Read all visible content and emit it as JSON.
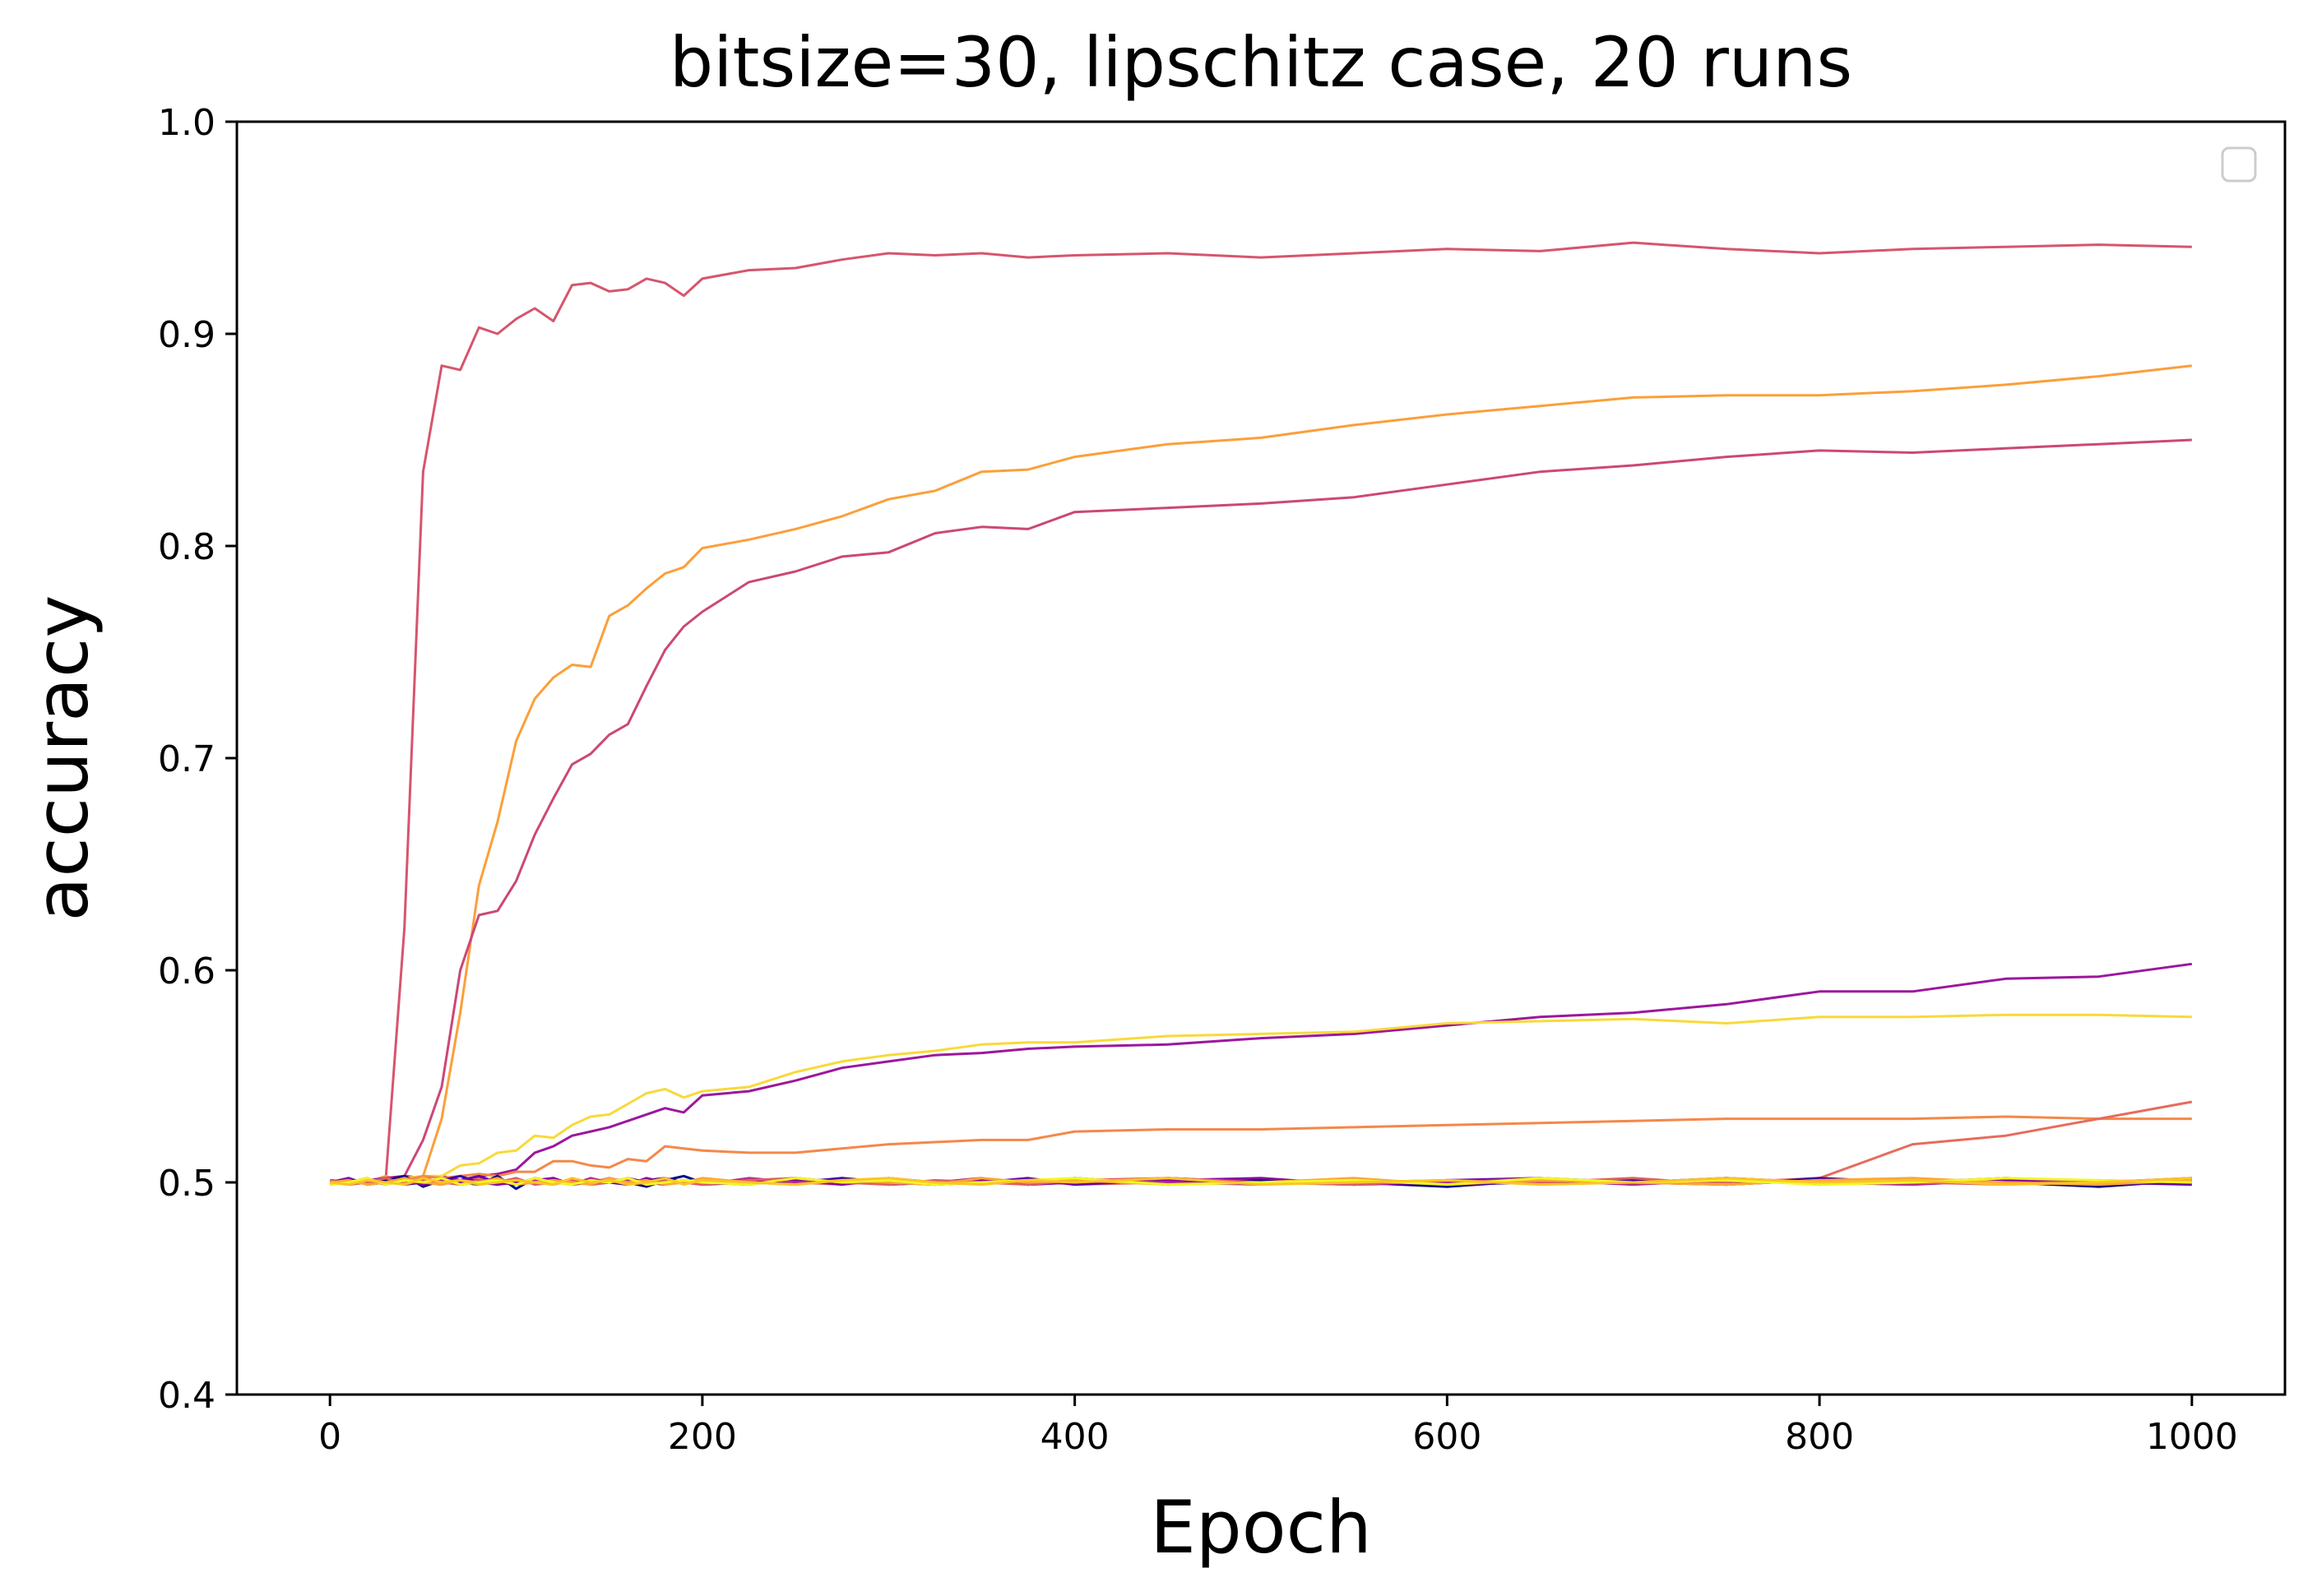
{
  "chart_data": {
    "type": "line",
    "title": "bitsize=30, lipschitz case, 20 runs",
    "xlabel": "Epoch",
    "ylabel": "accuracy",
    "xlim": [
      -50,
      1050
    ],
    "ylim": [
      0.4,
      1.0
    ],
    "xticks": [
      0,
      200,
      400,
      600,
      800,
      1000
    ],
    "yticks": [
      0.4,
      0.5,
      0.6,
      0.7,
      0.8,
      0.9,
      1.0
    ],
    "xtick_labels": [
      "0",
      "200",
      "400",
      "600",
      "800",
      "1000"
    ],
    "ytick_labels": [
      "0.4",
      "0.5",
      "0.6",
      "0.7",
      "0.8",
      "0.9",
      "1.0"
    ],
    "grid": false,
    "legend": {
      "placement": "top-right",
      "entries": []
    },
    "x": [
      0,
      10,
      20,
      30,
      40,
      50,
      60,
      70,
      80,
      90,
      100,
      110,
      120,
      130,
      140,
      150,
      160,
      170,
      180,
      190,
      200,
      225,
      250,
      275,
      300,
      325,
      350,
      375,
      400,
      450,
      500,
      550,
      600,
      650,
      700,
      750,
      800,
      850,
      900,
      950,
      1000
    ],
    "series": [
      {
        "color": "#d6556d",
        "values": [
          0.5,
          0.501,
          0.5,
          0.502,
          0.62,
          0.835,
          0.885,
          0.883,
          0.903,
          0.9,
          0.907,
          0.912,
          0.906,
          0.923,
          0.924,
          0.92,
          0.921,
          0.926,
          0.924,
          0.918,
          0.926,
          0.93,
          0.931,
          0.935,
          0.938,
          0.937,
          0.938,
          0.936,
          0.937,
          0.938,
          0.936,
          0.938,
          0.94,
          0.939,
          0.943,
          0.94,
          0.938,
          0.94,
          0.941,
          0.942,
          0.941
        ]
      },
      {
        "color": "#fb9f3a",
        "values": [
          0.5,
          0.501,
          0.5,
          0.503,
          0.5,
          0.503,
          0.53,
          0.58,
          0.64,
          0.67,
          0.708,
          0.728,
          0.738,
          0.744,
          0.743,
          0.767,
          0.772,
          0.78,
          0.787,
          0.79,
          0.799,
          0.803,
          0.808,
          0.814,
          0.822,
          0.826,
          0.835,
          0.836,
          0.842,
          0.848,
          0.851,
          0.857,
          0.862,
          0.866,
          0.87,
          0.871,
          0.871,
          0.873,
          0.876,
          0.88,
          0.885
        ]
      },
      {
        "color": "#cc4778",
        "values": [
          0.5,
          0.499,
          0.5,
          0.501,
          0.503,
          0.52,
          0.545,
          0.6,
          0.626,
          0.628,
          0.642,
          0.664,
          0.681,
          0.697,
          0.702,
          0.711,
          0.716,
          0.734,
          0.751,
          0.762,
          0.769,
          0.783,
          0.788,
          0.795,
          0.797,
          0.806,
          0.809,
          0.808,
          0.816,
          0.818,
          0.82,
          0.823,
          0.829,
          0.835,
          0.838,
          0.842,
          0.845,
          0.844,
          0.846,
          0.848,
          0.85
        ]
      },
      {
        "color": "#9c179e",
        "values": [
          0.5,
          0.5,
          0.501,
          0.502,
          0.503,
          0.502,
          0.503,
          0.501,
          0.503,
          0.504,
          0.506,
          0.514,
          0.517,
          0.522,
          0.524,
          0.526,
          0.529,
          0.532,
          0.535,
          0.533,
          0.541,
          0.543,
          0.548,
          0.554,
          0.557,
          0.56,
          0.561,
          0.563,
          0.564,
          0.565,
          0.568,
          0.57,
          0.574,
          0.578,
          0.58,
          0.584,
          0.59,
          0.59,
          0.596,
          0.597,
          0.603
        ]
      },
      {
        "color": "#f9d93a",
        "values": [
          0.5,
          0.499,
          0.5,
          0.501,
          0.502,
          0.503,
          0.503,
          0.508,
          0.509,
          0.514,
          0.515,
          0.522,
          0.521,
          0.527,
          0.531,
          0.532,
          0.537,
          0.542,
          0.544,
          0.54,
          0.543,
          0.545,
          0.552,
          0.557,
          0.56,
          0.562,
          0.565,
          0.566,
          0.566,
          0.569,
          0.57,
          0.571,
          0.575,
          0.576,
          0.577,
          0.575,
          0.578,
          0.578,
          0.579,
          0.579,
          0.578
        ]
      },
      {
        "color": "#f48849",
        "values": [
          0.5,
          0.501,
          0.5,
          0.502,
          0.501,
          0.503,
          0.502,
          0.503,
          0.504,
          0.503,
          0.505,
          0.505,
          0.51,
          0.51,
          0.508,
          0.507,
          0.511,
          0.51,
          0.517,
          0.516,
          0.515,
          0.514,
          0.514,
          0.516,
          0.518,
          0.519,
          0.52,
          0.52,
          0.524,
          0.525,
          0.525,
          0.526,
          0.527,
          0.528,
          0.529,
          0.53,
          0.53,
          0.53,
          0.531,
          0.53,
          0.53
        ]
      },
      {
        "color": "#e66c5c",
        "values": [
          0.5,
          0.499,
          0.501,
          0.5,
          0.502,
          0.5,
          0.501,
          0.499,
          0.502,
          0.5,
          0.501,
          0.5,
          0.499,
          0.501,
          0.5,
          0.502,
          0.5,
          0.499,
          0.501,
          0.5,
          0.5,
          0.501,
          0.5,
          0.499,
          0.501,
          0.5,
          0.5,
          0.501,
          0.499,
          0.5,
          0.501,
          0.5,
          0.501,
          0.5,
          0.501,
          0.5,
          0.502,
          0.518,
          0.522,
          0.53,
          0.538
        ]
      },
      {
        "color": "#0d0887",
        "values": [
          0.5,
          0.502,
          0.499,
          0.501,
          0.503,
          0.498,
          0.501,
          0.5,
          0.499,
          0.503,
          0.497,
          0.502,
          0.5,
          0.501,
          0.499,
          0.502,
          0.5,
          0.498,
          0.501,
          0.503,
          0.5,
          0.501,
          0.499,
          0.502,
          0.5,
          0.499,
          0.501,
          0.5,
          0.502,
          0.499,
          0.501,
          0.5,
          0.498,
          0.501,
          0.5,
          0.502,
          0.499,
          0.501,
          0.5,
          0.498,
          0.501
        ]
      },
      {
        "color": "#3e049c",
        "values": [
          0.499,
          0.501,
          0.5,
          0.502,
          0.499,
          0.5,
          0.501,
          0.503,
          0.5,
          0.499,
          0.501,
          0.5,
          0.502,
          0.499,
          0.501,
          0.5,
          0.499,
          0.501,
          0.502,
          0.5,
          0.499,
          0.501,
          0.5,
          0.502,
          0.499,
          0.5,
          0.501,
          0.499,
          0.5,
          0.502,
          0.5,
          0.501,
          0.499,
          0.5,
          0.501,
          0.499,
          0.502,
          0.5,
          0.501,
          0.499,
          0.5
        ]
      },
      {
        "color": "#6300a7",
        "values": [
          0.501,
          0.5,
          0.502,
          0.499,
          0.501,
          0.5,
          0.499,
          0.501,
          0.503,
          0.5,
          0.499,
          0.502,
          0.5,
          0.501,
          0.499,
          0.5,
          0.502,
          0.5,
          0.499,
          0.501,
          0.5,
          0.499,
          0.502,
          0.5,
          0.501,
          0.499,
          0.5,
          0.502,
          0.499,
          0.501,
          0.5,
          0.499,
          0.501,
          0.502,
          0.5,
          0.499,
          0.501,
          0.5,
          0.502,
          0.5,
          0.499
        ]
      },
      {
        "color": "#8707a6",
        "values": [
          0.5,
          0.502,
          0.499,
          0.5,
          0.501,
          0.499,
          0.502,
          0.5,
          0.501,
          0.499,
          0.5,
          0.501,
          0.502,
          0.499,
          0.5,
          0.501,
          0.499,
          0.502,
          0.5,
          0.501,
          0.499,
          0.5,
          0.501,
          0.499,
          0.502,
          0.5,
          0.501,
          0.499,
          0.5,
          0.501,
          0.502,
          0.499,
          0.5,
          0.501,
          0.499,
          0.502,
          0.5,
          0.499,
          0.501,
          0.5,
          0.502
        ]
      },
      {
        "color": "#b52f8c",
        "values": [
          0.499,
          0.5,
          0.501,
          0.499,
          0.502,
          0.5,
          0.501,
          0.499,
          0.5,
          0.502,
          0.499,
          0.501,
          0.5,
          0.499,
          0.502,
          0.5,
          0.501,
          0.499,
          0.5,
          0.501,
          0.499,
          0.502,
          0.5,
          0.501,
          0.499,
          0.5,
          0.502,
          0.499,
          0.501,
          0.5,
          0.499,
          0.501,
          0.5,
          0.502,
          0.499,
          0.501,
          0.5,
          0.499,
          0.502,
          0.5,
          0.501
        ]
      },
      {
        "color": "#de5f65",
        "values": [
          0.501,
          0.499,
          0.5,
          0.502,
          0.499,
          0.501,
          0.5,
          0.499,
          0.501,
          0.5,
          0.502,
          0.499,
          0.5,
          0.501,
          0.499,
          0.5,
          0.502,
          0.499,
          0.501,
          0.5,
          0.499,
          0.501,
          0.502,
          0.5,
          0.499,
          0.501,
          0.5,
          0.499,
          0.501,
          0.502,
          0.5,
          0.499,
          0.501,
          0.5,
          0.502,
          0.499,
          0.501,
          0.5,
          0.499,
          0.501,
          0.5
        ]
      },
      {
        "color": "#fca636",
        "values": [
          0.5,
          0.501,
          0.499,
          0.5,
          0.502,
          0.5,
          0.499,
          0.501,
          0.5,
          0.502,
          0.499,
          0.5,
          0.501,
          0.5,
          0.499,
          0.502,
          0.5,
          0.501,
          0.499,
          0.5,
          0.502,
          0.5,
          0.499,
          0.501,
          0.5,
          0.499,
          0.502,
          0.5,
          0.501,
          0.499,
          0.5,
          0.502,
          0.499,
          0.501,
          0.5,
          0.499,
          0.501,
          0.502,
          0.5,
          0.499,
          0.501
        ]
      },
      {
        "color": "#f0f921",
        "values": [
          0.499,
          0.5,
          0.502,
          0.499,
          0.501,
          0.5,
          0.502,
          0.499,
          0.5,
          0.501,
          0.499,
          0.502,
          0.5,
          0.499,
          0.501,
          0.5,
          0.502,
          0.499,
          0.5,
          0.501,
          0.5,
          0.499,
          0.502,
          0.5,
          0.501,
          0.499,
          0.5,
          0.501,
          0.502,
          0.499,
          0.5,
          0.501,
          0.499,
          0.502,
          0.5,
          0.501,
          0.499,
          0.5,
          0.502,
          0.501,
          0.5
        ]
      },
      {
        "color": "#fdc328",
        "values": [
          0.5,
          0.499,
          0.501,
          0.5,
          0.499,
          0.502,
          0.5,
          0.501,
          0.499,
          0.5,
          0.501,
          0.5,
          0.499,
          0.502,
          0.5,
          0.501,
          0.499,
          0.5,
          0.502,
          0.499,
          0.501,
          0.5,
          0.499,
          0.501,
          0.502,
          0.5,
          0.499,
          0.501,
          0.5,
          0.502,
          0.499,
          0.5,
          0.501,
          0.499,
          0.5,
          0.502,
          0.5,
          0.501,
          0.499,
          0.5,
          0.502
        ]
      }
    ]
  }
}
